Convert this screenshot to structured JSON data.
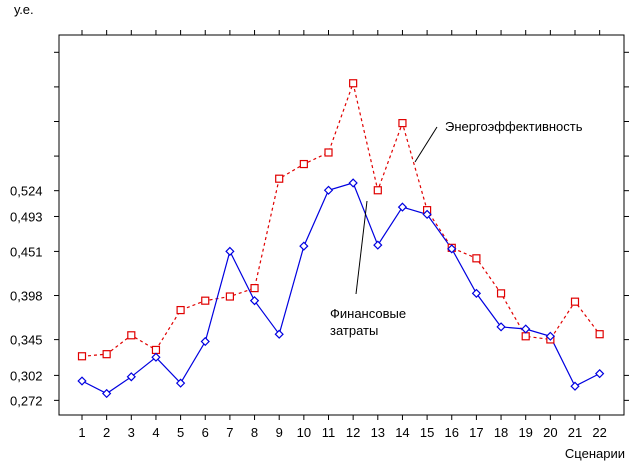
{
  "chart_data": {
    "type": "line",
    "ylabel": "у.е.",
    "xlabel": "Сценарии",
    "categories": [
      "1",
      "2",
      "3",
      "4",
      "5",
      "6",
      "7",
      "8",
      "9",
      "10",
      "11",
      "12",
      "13",
      "14",
      "15",
      "16",
      "17",
      "18",
      "19",
      "20",
      "21",
      "22"
    ],
    "y_tick_labels": [
      "0,272",
      "0,302",
      "0,345",
      "0,398",
      "0,451",
      "0,493",
      "0,524"
    ],
    "y_ticks": [
      0.272,
      0.302,
      0.345,
      0.398,
      0.451,
      0.493,
      0.524
    ],
    "ylim": [
      0.2544,
      0.7111
    ],
    "grid": false,
    "series": [
      {
        "name": "Энергоэффективность",
        "color": "#e00000",
        "line_style": "dashed",
        "marker": "square",
        "values": [
          0.325,
          0.3275,
          0.3502,
          0.3326,
          0.3805,
          0.3918,
          0.3968,
          0.4069,
          0.5384,
          0.556,
          0.5699,
          0.6531,
          0.5245,
          0.6052,
          0.5006,
          0.4553,
          0.4427,
          0.4006,
          0.349,
          0.3452,
          0.3906,
          0.3515
        ]
      },
      {
        "name": "Финансовые затраты",
        "color": "#0000e0",
        "line_style": "solid",
        "marker": "diamond",
        "values": [
          0.2953,
          0.2802,
          0.3003,
          0.3238,
          0.2927,
          0.3427,
          0.4511,
          0.3918,
          0.3515,
          0.4574,
          0.5245,
          0.5333,
          0.4586,
          0.5043,
          0.4955,
          0.4541,
          0.4006,
          0.3603,
          0.3578,
          0.349,
          0.289,
          0.3041
        ]
      }
    ],
    "annotations": [
      {
        "text": "Энергоэффективность",
        "series": "Энергоэффективность"
      },
      {
        "text": "Финансовые",
        "series": "Финансовые затраты"
      },
      {
        "text": "затраты",
        "series": "Финансовые затраты"
      }
    ]
  }
}
